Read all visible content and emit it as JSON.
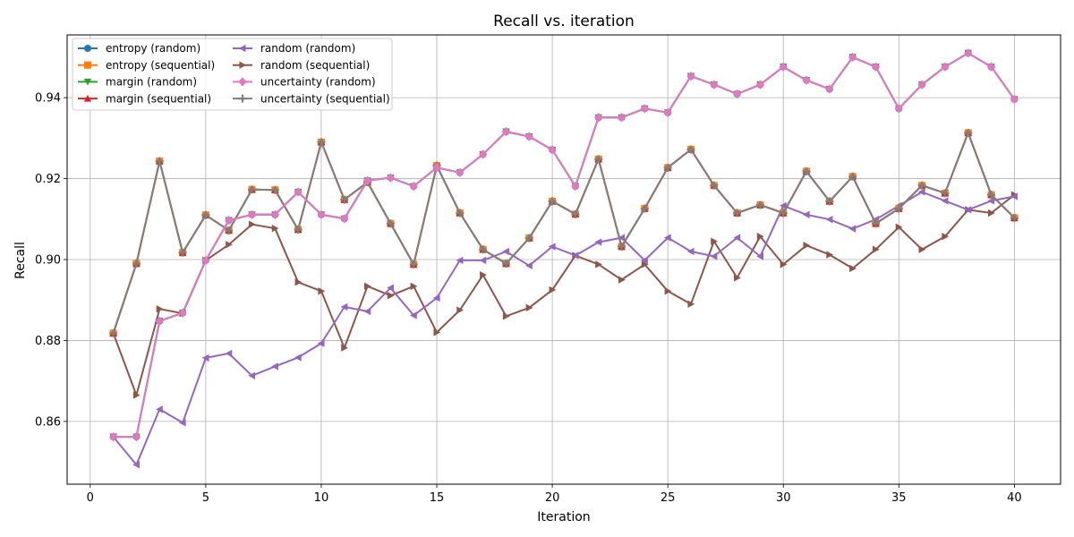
{
  "chart_data": {
    "type": "line",
    "title": "Recall vs. iteration",
    "xlabel": "Iteration",
    "ylabel": "Recall",
    "xlim": [
      -1,
      42
    ],
    "ylim": [
      0.8445,
      0.9555
    ],
    "xticks": [
      0,
      5,
      10,
      15,
      20,
      25,
      30,
      35,
      40
    ],
    "yticks": [
      0.86,
      0.88,
      0.9,
      0.92,
      0.94
    ],
    "ytick_labels": [
      "0.86",
      "0.88",
      "0.90",
      "0.92",
      "0.94"
    ],
    "grid": true,
    "legend_position": "top-left",
    "legend_columns": 2,
    "x": [
      1,
      2,
      3,
      4,
      5,
      6,
      7,
      8,
      9,
      10,
      11,
      12,
      13,
      14,
      15,
      16,
      17,
      18,
      19,
      20,
      21,
      22,
      23,
      24,
      25,
      26,
      27,
      28,
      29,
      30,
      31,
      32,
      33,
      34,
      35,
      36,
      37,
      38,
      39,
      40
    ],
    "series": [
      {
        "name": "entropy (random)",
        "color": "#1f77b4",
        "marker": "circle",
        "values": [
          0.8562,
          0.8562,
          0.8848,
          0.8868,
          0.8998,
          0.9097,
          0.9111,
          0.9111,
          0.9167,
          0.9111,
          0.9101,
          0.9195,
          0.9202,
          0.9181,
          0.9227,
          0.9215,
          0.926,
          0.9316,
          0.9304,
          0.9271,
          0.9181,
          0.9351,
          0.9351,
          0.9373,
          0.9363,
          0.9453,
          0.9432,
          0.9409,
          0.9432,
          0.9476,
          0.9443,
          0.9421,
          0.95,
          0.9476,
          0.9373,
          0.9432,
          0.9476,
          0.951,
          0.9476,
          0.9396
        ]
      },
      {
        "name": "entropy (sequential)",
        "color": "#ff7f0e",
        "marker": "square",
        "values": [
          0.8818,
          0.899,
          0.9243,
          0.9017,
          0.911,
          0.9072,
          0.9173,
          0.9172,
          0.9074,
          0.929,
          0.9148,
          0.9191,
          0.9089,
          0.8988,
          0.9232,
          0.9115,
          0.9025,
          0.899,
          0.9053,
          0.9144,
          0.9112,
          0.9248,
          0.9032,
          0.9126,
          0.9227,
          0.9272,
          0.9183,
          0.9115,
          0.9135,
          0.9115,
          0.9218,
          0.9144,
          0.9205,
          0.9089,
          0.9126,
          0.9183,
          0.9164,
          0.9313,
          0.916,
          0.9103
        ]
      },
      {
        "name": "margin (random)",
        "color": "#2ca02c",
        "marker": "triangle-down",
        "values": [
          0.8562,
          0.8562,
          0.8848,
          0.8868,
          0.8998,
          0.9097,
          0.9111,
          0.9111,
          0.9167,
          0.9111,
          0.9101,
          0.9195,
          0.9202,
          0.9181,
          0.9227,
          0.9215,
          0.926,
          0.9316,
          0.9304,
          0.9271,
          0.9181,
          0.9351,
          0.9351,
          0.9373,
          0.9363,
          0.9453,
          0.9432,
          0.9409,
          0.9432,
          0.9476,
          0.9443,
          0.9421,
          0.95,
          0.9476,
          0.9373,
          0.9432,
          0.9476,
          0.951,
          0.9476,
          0.9396
        ]
      },
      {
        "name": "margin (sequential)",
        "color": "#d62728",
        "marker": "triangle-up",
        "values": [
          0.8818,
          0.899,
          0.9243,
          0.9017,
          0.911,
          0.9072,
          0.9173,
          0.9172,
          0.9074,
          0.929,
          0.9148,
          0.9191,
          0.9089,
          0.8988,
          0.9232,
          0.9115,
          0.9025,
          0.899,
          0.9053,
          0.9144,
          0.9112,
          0.9248,
          0.9032,
          0.9126,
          0.9227,
          0.9272,
          0.9183,
          0.9115,
          0.9135,
          0.9115,
          0.9218,
          0.9144,
          0.9205,
          0.9089,
          0.9126,
          0.9183,
          0.9164,
          0.9313,
          0.916,
          0.9103
        ]
      },
      {
        "name": "random (random)",
        "color": "#9467bd",
        "marker": "triangle-left",
        "values": [
          0.8562,
          0.8493,
          0.863,
          0.8597,
          0.8757,
          0.8768,
          0.8713,
          0.8736,
          0.8758,
          0.8793,
          0.8883,
          0.8872,
          0.893,
          0.8862,
          0.8905,
          0.8998,
          0.8998,
          0.902,
          0.8985,
          0.9032,
          0.901,
          0.9043,
          0.9054,
          0.8998,
          0.9054,
          0.902,
          0.9008,
          0.9054,
          0.9008,
          0.9133,
          0.9111,
          0.9099,
          0.9076,
          0.9099,
          0.9133,
          0.9167,
          0.9145,
          0.9123,
          0.9145,
          0.9156
        ]
      },
      {
        "name": "random (sequential)",
        "color": "#8c564b",
        "marker": "triangle-right",
        "values": [
          0.8818,
          0.8665,
          0.8878,
          0.8867,
          0.8998,
          0.9037,
          0.9087,
          0.9077,
          0.8944,
          0.8922,
          0.8782,
          0.8934,
          0.8911,
          0.8934,
          0.882,
          0.8875,
          0.8962,
          0.886,
          0.8881,
          0.8925,
          0.901,
          0.8988,
          0.895,
          0.8988,
          0.8922,
          0.889,
          0.9045,
          0.8955,
          0.9057,
          0.8988,
          0.9035,
          0.9012,
          0.8978,
          0.9025,
          0.908,
          0.9025,
          0.9057,
          0.9123,
          0.9115,
          0.916
        ]
      },
      {
        "name": "uncertainty (random)",
        "color": "#e377c2",
        "marker": "diamond",
        "values": [
          0.8562,
          0.8562,
          0.8848,
          0.8868,
          0.8998,
          0.9097,
          0.9111,
          0.9111,
          0.9167,
          0.9111,
          0.9101,
          0.9195,
          0.9202,
          0.9181,
          0.9227,
          0.9215,
          0.926,
          0.9316,
          0.9304,
          0.9271,
          0.9181,
          0.9351,
          0.9351,
          0.9373,
          0.9363,
          0.9453,
          0.9432,
          0.9409,
          0.9432,
          0.9476,
          0.9443,
          0.9421,
          0.95,
          0.9476,
          0.9373,
          0.9432,
          0.9476,
          0.951,
          0.9476,
          0.9396
        ]
      },
      {
        "name": "uncertainty (sequential)",
        "color": "#7f7f7f",
        "marker": "plus",
        "values": [
          0.8818,
          0.899,
          0.9243,
          0.9017,
          0.911,
          0.9072,
          0.9173,
          0.9172,
          0.9074,
          0.929,
          0.9148,
          0.9191,
          0.9089,
          0.8988,
          0.9232,
          0.9115,
          0.9025,
          0.899,
          0.9053,
          0.9144,
          0.9112,
          0.9248,
          0.9032,
          0.9126,
          0.9227,
          0.9272,
          0.9183,
          0.9115,
          0.9135,
          0.9115,
          0.9218,
          0.9144,
          0.9205,
          0.9089,
          0.9126,
          0.9183,
          0.9164,
          0.9313,
          0.916,
          0.9103
        ]
      }
    ],
    "draw_order": [
      5,
      4,
      0,
      1,
      2,
      3,
      7,
      6
    ]
  }
}
